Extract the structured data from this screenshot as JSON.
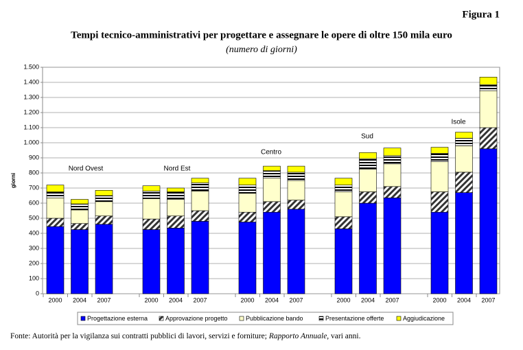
{
  "chart_data": {
    "type": "stacked_bar",
    "figure_label": "Figura 1",
    "title": "Tempi tecnico-amministrativi per progettare e assegnare le opere di oltre 150 mila euro",
    "subtitle": "(numero di giorni)",
    "ylabel": "giorni",
    "source": [
      "Fonte: Autorità per la vigilanza sui contratti pubblici di lavori, servizi e forniture; ",
      "Rapporto Annuale",
      ", vari anni."
    ],
    "group_labels": [
      "Nord Ovest",
      "Nord Est",
      "Centro",
      "Sud",
      "Isole"
    ],
    "categories": [
      "2000",
      "2004",
      "2007",
      "2000",
      "2004",
      "2007",
      "2000",
      "2004",
      "2007",
      "2000",
      "2004",
      "2007",
      "2000",
      "2004",
      "2007"
    ],
    "series": [
      {
        "name": "Progettazione esterna",
        "color": "#0000ff",
        "values": [
          445,
          425,
          460,
          425,
          435,
          480,
          475,
          540,
          560,
          430,
          600,
          635,
          540,
          670,
          960
        ]
      },
      {
        "name": "Approvazione progetto",
        "color": "#ffffff",
        "pattern": "diagonal",
        "values": [
          55,
          40,
          55,
          70,
          80,
          70,
          65,
          70,
          60,
          80,
          75,
          75,
          135,
          135,
          140
        ]
      },
      {
        "name": "Pubblicazione bando",
        "color": "#ffffcc",
        "values": [
          135,
          90,
          95,
          135,
          110,
          130,
          125,
          155,
          130,
          165,
          150,
          150,
          200,
          175,
          245
        ]
      },
      {
        "name": "Presentazione offerte",
        "color": "#ffffff",
        "pattern": "horizontal",
        "values": [
          40,
          40,
          40,
          50,
          50,
          55,
          55,
          50,
          55,
          45,
          70,
          55,
          55,
          50,
          40
        ]
      },
      {
        "name": "Aggiudicazione",
        "color": "#ffff00",
        "values": [
          45,
          30,
          35,
          35,
          25,
          30,
          45,
          30,
          40,
          45,
          40,
          50,
          40,
          40,
          50
        ]
      }
    ],
    "ylim": [
      0,
      1500
    ],
    "yticks": [
      0,
      100,
      200,
      300,
      400,
      500,
      600,
      700,
      800,
      900,
      {
        "value": 1000,
        "label": "1.000"
      },
      {
        "value": 1100,
        "label": "1.100"
      },
      {
        "value": 1200,
        "label": "1.200"
      },
      {
        "value": 1300,
        "label": "1.300"
      },
      {
        "value": 1400,
        "label": "1.400"
      },
      {
        "value": 1500,
        "label": "1.500"
      }
    ],
    "grid": true,
    "legend": "bottom"
  }
}
